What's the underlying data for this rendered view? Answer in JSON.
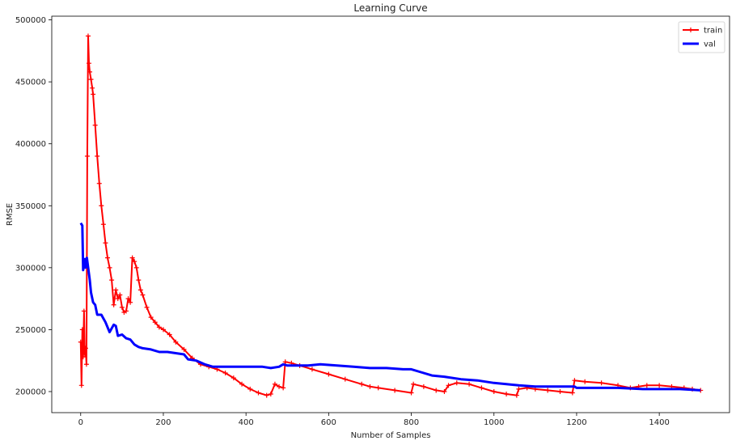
{
  "chart_data": {
    "type": "line",
    "title": "Learning Curve",
    "xlabel": "Number of Samples",
    "ylabel": "RMSE",
    "xlim": [
      -70,
      1570
    ],
    "ylim": [
      183000,
      503000
    ],
    "xticks": [
      0,
      200,
      400,
      600,
      800,
      1000,
      1200,
      1400
    ],
    "yticks": [
      200000,
      250000,
      300000,
      350000,
      400000,
      450000,
      500000
    ],
    "grid": false,
    "legend_position": "top-right",
    "series": [
      {
        "name": "train",
        "color": "#ff0000",
        "marker": "+",
        "points": [
          [
            0,
            240000
          ],
          [
            2,
            205000
          ],
          [
            4,
            250000
          ],
          [
            6,
            228000
          ],
          [
            8,
            265000
          ],
          [
            10,
            230000
          ],
          [
            12,
            235000
          ],
          [
            14,
            222000
          ],
          [
            16,
            390000
          ],
          [
            18,
            487000
          ],
          [
            20,
            465000
          ],
          [
            22,
            458000
          ],
          [
            25,
            452000
          ],
          [
            28,
            445000
          ],
          [
            30,
            440000
          ],
          [
            35,
            415000
          ],
          [
            40,
            390000
          ],
          [
            45,
            368000
          ],
          [
            50,
            350000
          ],
          [
            55,
            335000
          ],
          [
            60,
            320000
          ],
          [
            65,
            308000
          ],
          [
            70,
            300000
          ],
          [
            75,
            290000
          ],
          [
            80,
            270000
          ],
          [
            85,
            282000
          ],
          [
            90,
            275000
          ],
          [
            95,
            278000
          ],
          [
            100,
            268000
          ],
          [
            105,
            264000
          ],
          [
            110,
            265000
          ],
          [
            115,
            275000
          ],
          [
            120,
            272000
          ],
          [
            125,
            308000
          ],
          [
            130,
            305000
          ],
          [
            135,
            300000
          ],
          [
            140,
            290000
          ],
          [
            145,
            282000
          ],
          [
            150,
            278000
          ],
          [
            160,
            268000
          ],
          [
            170,
            260000
          ],
          [
            180,
            256000
          ],
          [
            190,
            252000
          ],
          [
            200,
            250000
          ],
          [
            215,
            246000
          ],
          [
            230,
            240000
          ],
          [
            250,
            234000
          ],
          [
            270,
            227000
          ],
          [
            290,
            222000
          ],
          [
            310,
            220000
          ],
          [
            330,
            218000
          ],
          [
            350,
            215000
          ],
          [
            370,
            211000
          ],
          [
            390,
            206000
          ],
          [
            410,
            202000
          ],
          [
            430,
            199000
          ],
          [
            450,
            197000
          ],
          [
            460,
            198000
          ],
          [
            470,
            206000
          ],
          [
            480,
            204000
          ],
          [
            490,
            203000
          ],
          [
            495,
            224000
          ],
          [
            510,
            223000
          ],
          [
            530,
            221000
          ],
          [
            560,
            218000
          ],
          [
            600,
            214000
          ],
          [
            640,
            210000
          ],
          [
            680,
            206000
          ],
          [
            700,
            204000
          ],
          [
            720,
            203000
          ],
          [
            760,
            201000
          ],
          [
            800,
            199000
          ],
          [
            805,
            206000
          ],
          [
            830,
            204000
          ],
          [
            860,
            201000
          ],
          [
            880,
            200000
          ],
          [
            890,
            205000
          ],
          [
            910,
            207000
          ],
          [
            940,
            206000
          ],
          [
            970,
            203000
          ],
          [
            1000,
            200000
          ],
          [
            1030,
            198000
          ],
          [
            1055,
            197000
          ],
          [
            1060,
            202000
          ],
          [
            1080,
            203000
          ],
          [
            1100,
            202000
          ],
          [
            1130,
            201000
          ],
          [
            1160,
            200000
          ],
          [
            1190,
            199000
          ],
          [
            1195,
            209000
          ],
          [
            1220,
            208000
          ],
          [
            1260,
            207000
          ],
          [
            1300,
            205000
          ],
          [
            1330,
            203000
          ],
          [
            1350,
            204000
          ],
          [
            1370,
            205000
          ],
          [
            1400,
            205000
          ],
          [
            1430,
            204000
          ],
          [
            1460,
            203000
          ],
          [
            1480,
            202000
          ],
          [
            1500,
            201000
          ]
        ]
      },
      {
        "name": "val",
        "color": "#0000ff",
        "marker": "none",
        "points": [
          [
            0,
            336000
          ],
          [
            4,
            334000
          ],
          [
            6,
            298000
          ],
          [
            8,
            302000
          ],
          [
            10,
            307000
          ],
          [
            12,
            300000
          ],
          [
            15,
            308000
          ],
          [
            18,
            300000
          ],
          [
            22,
            290000
          ],
          [
            25,
            280000
          ],
          [
            30,
            272000
          ],
          [
            35,
            270000
          ],
          [
            40,
            262000
          ],
          [
            50,
            262000
          ],
          [
            60,
            256000
          ],
          [
            70,
            248000
          ],
          [
            80,
            254000
          ],
          [
            85,
            253000
          ],
          [
            90,
            245000
          ],
          [
            100,
            246000
          ],
          [
            110,
            243000
          ],
          [
            120,
            242000
          ],
          [
            130,
            238000
          ],
          [
            140,
            236000
          ],
          [
            150,
            235000
          ],
          [
            170,
            234000
          ],
          [
            190,
            232000
          ],
          [
            210,
            232000
          ],
          [
            230,
            231000
          ],
          [
            250,
            230000
          ],
          [
            260,
            226000
          ],
          [
            280,
            225000
          ],
          [
            300,
            222000
          ],
          [
            320,
            220000
          ],
          [
            360,
            220000
          ],
          [
            400,
            220000
          ],
          [
            440,
            220000
          ],
          [
            460,
            219000
          ],
          [
            480,
            220000
          ],
          [
            490,
            222000
          ],
          [
            500,
            221000
          ],
          [
            550,
            221000
          ],
          [
            580,
            222000
          ],
          [
            620,
            221000
          ],
          [
            660,
            220000
          ],
          [
            700,
            219000
          ],
          [
            740,
            219000
          ],
          [
            780,
            218000
          ],
          [
            800,
            218000
          ],
          [
            820,
            216000
          ],
          [
            850,
            213000
          ],
          [
            880,
            212000
          ],
          [
            920,
            210000
          ],
          [
            960,
            209000
          ],
          [
            1000,
            207000
          ],
          [
            1030,
            206000
          ],
          [
            1060,
            205000
          ],
          [
            1100,
            204000
          ],
          [
            1150,
            204000
          ],
          [
            1195,
            204000
          ],
          [
            1200,
            203000
          ],
          [
            1260,
            203000
          ],
          [
            1300,
            203000
          ],
          [
            1360,
            202000
          ],
          [
            1400,
            202000
          ],
          [
            1450,
            202000
          ],
          [
            1500,
            201000
          ]
        ]
      }
    ]
  }
}
